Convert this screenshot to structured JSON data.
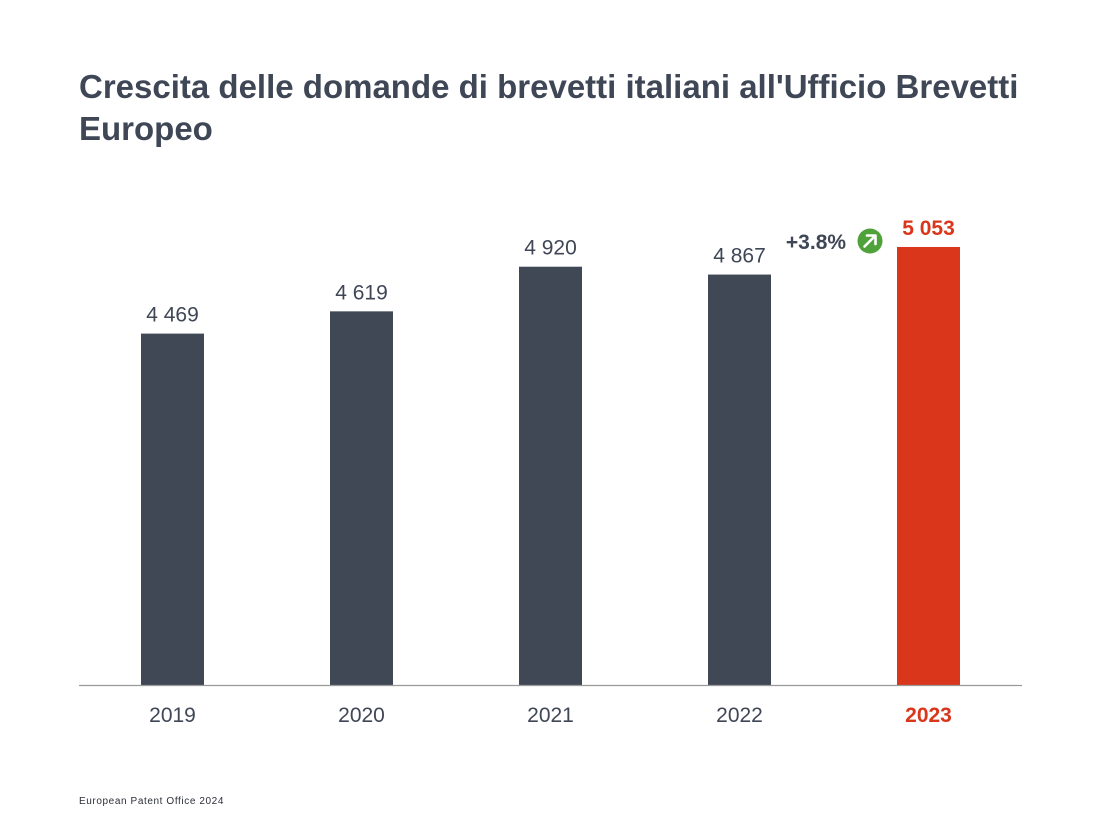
{
  "title": "Crescita delle domande di brevetti italiani all'Ufficio Brevetti Europeo",
  "footer": "European Patent Office 2024",
  "colors": {
    "bar": "#404855",
    "highlight": "#d9361b",
    "axis": "#9a9a9a",
    "text": "#3f4756",
    "growth_badge": "#4fa23a"
  },
  "chart_data": {
    "type": "bar",
    "title": "Crescita delle domande di brevetti italiani all'Ufficio Brevetti Europeo",
    "categories": [
      "2019",
      "2020",
      "2021",
      "2022",
      "2023"
    ],
    "values": [
      4469,
      4619,
      4920,
      4867,
      5053
    ],
    "value_labels": [
      "4 469",
      "4 619",
      "4 920",
      "4 867",
      "5 053"
    ],
    "highlight_index": 4,
    "ylim": [
      2100,
      5100
    ],
    "grid": false,
    "annotation": {
      "text": "+3.8%",
      "icon": "arrow-up-right-icon",
      "between": [
        "2022",
        "2023"
      ]
    }
  }
}
